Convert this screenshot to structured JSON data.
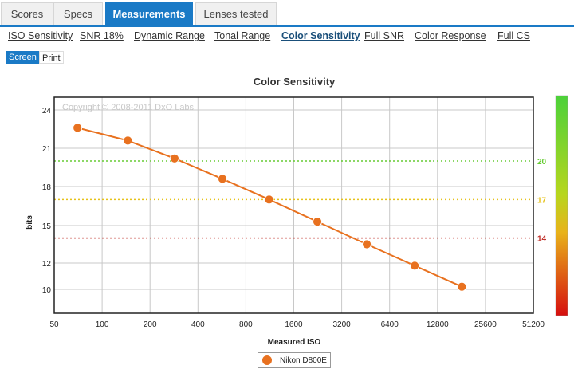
{
  "tabs": [
    {
      "label": "Scores",
      "active": false
    },
    {
      "label": "Specs",
      "active": false
    },
    {
      "label": "Measurements",
      "active": true
    },
    {
      "label": "Lenses tested",
      "active": false
    }
  ],
  "subnav": [
    {
      "label": "ISO Sensitivity",
      "active": false
    },
    {
      "label": "SNR 18%",
      "active": false
    },
    {
      "label": "Dynamic Range",
      "active": false
    },
    {
      "label": "Tonal Range",
      "active": false
    },
    {
      "label": "Color Sensitivity",
      "active": true
    },
    {
      "label": "Full SNR",
      "active": false
    },
    {
      "label": "Color Response",
      "active": false
    },
    {
      "label": "Full CS",
      "active": false
    }
  ],
  "view_modes": {
    "screen": "Screen",
    "print": "Print",
    "active": "screen"
  },
  "chart_data": {
    "type": "line",
    "title": "Color Sensitivity",
    "xlabel": "Measured ISO",
    "ylabel": "bits",
    "watermark": "Copyright © 2008-2011 DxO Labs",
    "x_scale": "log2",
    "x_ticks": [
      "50",
      "100",
      "200",
      "400",
      "800",
      "1600",
      "3200",
      "6400",
      "12800",
      "25600",
      "51200"
    ],
    "y_ticks": [
      "24",
      "21",
      "18",
      "15",
      "12",
      "10"
    ],
    "grid": true,
    "series": [
      {
        "name": "Nikon D800E",
        "color": "#e8711f",
        "x": [
          70,
          145,
          285,
          570,
          1120,
          2250,
          4600,
          9200,
          18200
        ],
        "y": [
          22.6,
          21.6,
          20.2,
          18.6,
          17.0,
          15.3,
          13.5,
          11.8,
          10.2
        ]
      }
    ],
    "reference_lines": [
      {
        "label": "20",
        "color": "#66cc33"
      },
      {
        "label": "17",
        "color": "#e6c21a"
      },
      {
        "label": "14",
        "color": "#c0302a"
      }
    ],
    "colorbar": {
      "top_color": "#4cd13a",
      "bottom_color": "#d60f0f"
    },
    "legend_position": "bottom"
  }
}
